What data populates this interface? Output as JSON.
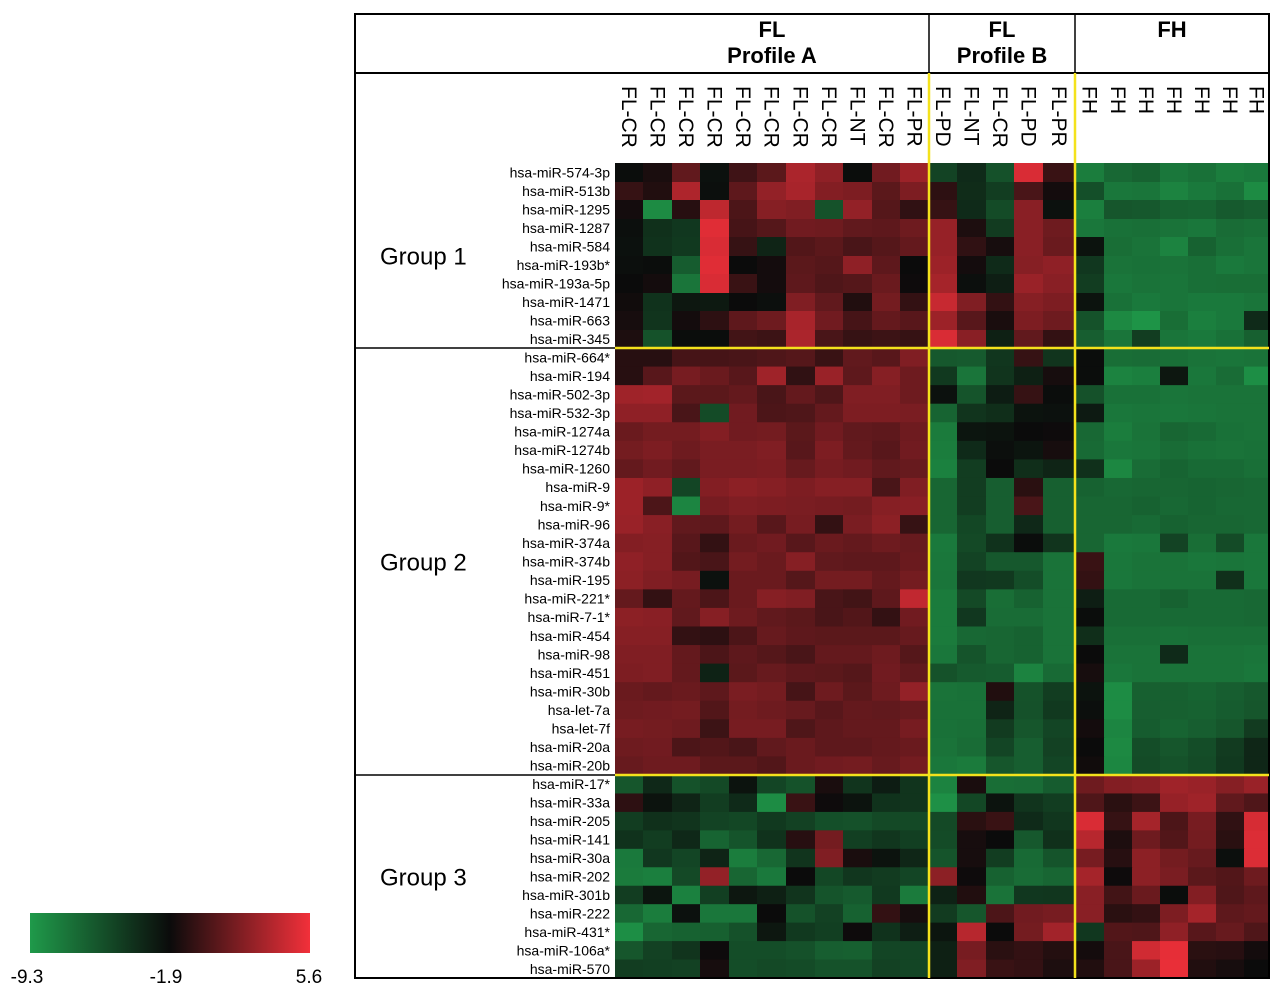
{
  "chart_data": {
    "type": "heatmap",
    "title": "",
    "color_scale": {
      "min": -9.3,
      "mid": -1.9,
      "max": 5.6,
      "tick_labels": [
        "-9.3",
        "-1.9",
        "5.6"
      ],
      "colors": [
        "#1f9a4a",
        "#0b0b0b",
        "#f2303a"
      ]
    },
    "column_groups": [
      {
        "label_lines": [
          "FL",
          "Profile A"
        ],
        "count": 11
      },
      {
        "label_lines": [
          "FL",
          "Profile B"
        ],
        "count": 5
      },
      {
        "label_lines": [
          "FH"
        ],
        "count": 7
      }
    ],
    "columns": [
      "FL-CR",
      "FL-CR",
      "FL-CR",
      "FL-CR",
      "FL-CR",
      "FL-CR",
      "FL-CR",
      "FL-CR",
      "FL-NT",
      "FL-CR",
      "FL-PR",
      "FL-PD",
      "FL-NT",
      "FL-CR",
      "FL-PD",
      "FL-PR",
      "FH",
      "FH",
      "FH",
      "FH",
      "FH",
      "FH",
      "FH"
    ],
    "row_groups": [
      {
        "label": "Group 1",
        "count": 10
      },
      {
        "label": "Group 2",
        "count": 23
      },
      {
        "label": "Group 3",
        "count": 11
      }
    ],
    "rows": [
      "hsa-miR-574-3p",
      "hsa-miR-513b",
      "hsa-miR-1295",
      "hsa-miR-1287",
      "hsa-miR-584",
      "hsa-miR-193b*",
      "hsa-miR-193a-5p",
      "hsa-miR-1471",
      "hsa-miR-663",
      "hsa-miR-345",
      "hsa-miR-664*",
      "hsa-miR-194",
      "hsa-miR-502-3p",
      "hsa-miR-532-3p",
      "hsa-miR-1274a",
      "hsa-miR-1274b",
      "hsa-miR-1260",
      "hsa-miR-9",
      "hsa-miR-9*",
      "hsa-miR-96",
      "hsa-miR-374a",
      "hsa-miR-374b",
      "hsa-miR-195",
      "hsa-miR-221*",
      "hsa-miR-7-1*",
      "hsa-miR-454",
      "hsa-miR-98",
      "hsa-miR-451",
      "hsa-miR-30b",
      "hsa-let-7a",
      "hsa-let-7f",
      "hsa-miR-20a",
      "hsa-miR-20b",
      "hsa-miR-17*",
      "hsa-miR-33a",
      "hsa-miR-205",
      "hsa-miR-141",
      "hsa-miR-30a",
      "hsa-miR-202",
      "hsa-miR-301b",
      "hsa-miR-222",
      "hsa-miR-431*",
      "hsa-miR-106a*",
      "hsa-miR-570"
    ],
    "values": [
      [
        -2.0,
        -1.4,
        0.9,
        -2.2,
        -0.2,
        0.7,
        3.3,
        2.4,
        -2.0,
        1.4,
        2.8,
        -4.8,
        -3.5,
        -5.5,
        4.8,
        -0.4,
        -7.8,
        -6.7,
        -6.4,
        -7.5,
        -7.2,
        -7.8,
        -7.6
      ],
      [
        -0.5,
        -1.2,
        3.4,
        -2.1,
        0.8,
        2.5,
        3.2,
        2.0,
        1.8,
        0.7,
        1.8,
        -0.8,
        -3.6,
        -4.5,
        0.1,
        -1.6,
        -5.4,
        -7.5,
        -7.4,
        -8.1,
        -7.6,
        -7.2,
        -8.5
      ],
      [
        -1.6,
        -8.5,
        -1.0,
        3.9,
        0.2,
        2.1,
        1.9,
        -5.6,
        2.5,
        0.5,
        -0.7,
        -0.5,
        -3.5,
        -5.2,
        2.2,
        -2.2,
        -7.9,
        -5.8,
        -5.9,
        -6.4,
        -6.5,
        -6.0,
        -6.2
      ],
      [
        -2.1,
        -3.8,
        -4.2,
        5.0,
        0.0,
        0.5,
        1.4,
        1.3,
        0.9,
        0.8,
        1.3,
        2.6,
        -1.3,
        -4.4,
        2.2,
        1.3,
        -7.5,
        -7.2,
        -7.1,
        -7.3,
        -7.5,
        -6.9,
        -7.1
      ],
      [
        -2.2,
        -3.9,
        -4.3,
        4.8,
        -0.5,
        -3.2,
        0.4,
        0.7,
        0.1,
        0.5,
        1.0,
        2.6,
        -0.7,
        -1.5,
        2.2,
        1.2,
        -2.3,
        -7.0,
        -7.3,
        -8.1,
        -6.4,
        -7.1,
        -7.4
      ],
      [
        -2.1,
        -2.0,
        -6.1,
        5.0,
        -1.9,
        -1.6,
        0.7,
        0.5,
        2.4,
        0.8,
        -1.9,
        2.8,
        -1.6,
        -3.5,
        2.1,
        2.4,
        -4.2,
        -7.3,
        -7.2,
        -7.3,
        -7.1,
        -7.6,
        -7.4
      ],
      [
        -1.9,
        -1.6,
        -7.4,
        4.8,
        -0.4,
        -1.6,
        0.8,
        0.3,
        0.5,
        1.2,
        -1.8,
        3.1,
        -2.1,
        -2.9,
        2.7,
        2.2,
        -4.5,
        -7.5,
        -7.3,
        -7.4,
        -7.1,
        -7.0,
        -7.0
      ],
      [
        -1.7,
        -3.9,
        -2.5,
        -2.6,
        -1.9,
        -2.1,
        1.9,
        0.9,
        -1.2,
        1.5,
        -0.6,
        4.2,
        1.9,
        -0.6,
        2.1,
        1.8,
        -2.3,
        -7.2,
        -7.6,
        -7.4,
        -7.6,
        -7.6,
        -7.4
      ],
      [
        -1.5,
        -4.0,
        -1.6,
        -0.8,
        0.8,
        1.3,
        3.2,
        1.4,
        0.0,
        1.0,
        0.6,
        2.8,
        0.6,
        -1.4,
        1.8,
        1.3,
        -5.6,
        -8.4,
        -9.0,
        -7.0,
        -7.9,
        -7.6,
        -3.5
      ],
      [
        -1.3,
        -5.6,
        -2.0,
        -2.0,
        -0.1,
        -0.3,
        3.3,
        0.1,
        -0.5,
        -0.3,
        -0.5,
        4.8,
        2.2,
        -3.0,
        0.9,
        -0.6,
        -6.2,
        -7.4,
        -4.5,
        -7.4,
        -7.6,
        -7.2,
        -6.3
      ],
      [
        -1.0,
        -1.0,
        0.0,
        0.0,
        0.1,
        0.3,
        0.5,
        -0.4,
        0.9,
        0.6,
        1.9,
        -5.9,
        -6.0,
        -4.1,
        -0.5,
        -4.0,
        -2.0,
        -7.0,
        -6.9,
        -7.1,
        -7.3,
        -7.4,
        -7.3
      ],
      [
        -1.0,
        0.6,
        1.6,
        1.2,
        0.6,
        2.9,
        -0.7,
        2.7,
        0.8,
        2.1,
        1.3,
        -4.3,
        -7.4,
        -4.0,
        -3.0,
        -1.5,
        -2.0,
        -8.1,
        -7.9,
        -2.5,
        -7.5,
        -6.9,
        -8.7
      ],
      [
        2.9,
        3.0,
        0.7,
        0.7,
        1.0,
        0.1,
        1.0,
        0.3,
        1.9,
        1.9,
        1.3,
        -2.2,
        -5.7,
        -2.8,
        -0.5,
        -2.0,
        -5.5,
        -7.2,
        -7.2,
        -7.4,
        -7.3,
        -7.3,
        -7.3
      ],
      [
        2.4,
        2.4,
        0.1,
        -5.2,
        1.4,
        0.2,
        0.3,
        1.0,
        1.8,
        1.8,
        1.7,
        -6.5,
        -4.0,
        -3.7,
        -2.3,
        -2.2,
        -2.7,
        -7.5,
        -7.4,
        -7.5,
        -7.4,
        -7.3,
        -7.3
      ],
      [
        1.2,
        1.5,
        1.5,
        2.0,
        1.4,
        1.5,
        0.7,
        1.4,
        0.9,
        0.8,
        1.3,
        -7.7,
        -2.4,
        -2.3,
        -1.9,
        -1.8,
        -6.7,
        -7.8,
        -7.3,
        -6.6,
        -6.8,
        -7.2,
        -7.3
      ],
      [
        1.5,
        1.8,
        1.3,
        1.7,
        1.7,
        1.9,
        0.6,
        1.8,
        1.0,
        0.6,
        1.4,
        -7.8,
        -3.5,
        -2.1,
        -2.4,
        -1.5,
        -6.8,
        -7.5,
        -7.4,
        -6.9,
        -7.2,
        -7.3,
        -7.2
      ],
      [
        1.0,
        1.4,
        0.9,
        1.7,
        1.7,
        1.8,
        1.1,
        1.6,
        1.4,
        0.9,
        1.1,
        -8.0,
        -4.5,
        -1.9,
        -3.7,
        -3.2,
        -3.8,
        -8.3,
        -6.9,
        -6.5,
        -6.8,
        -6.8,
        -7.1
      ],
      [
        2.8,
        2.4,
        -4.9,
        2.0,
        2.3,
        2.1,
        1.8,
        2.1,
        2.1,
        0.1,
        1.9,
        -6.6,
        -4.5,
        -6.2,
        -0.9,
        -6.3,
        -6.4,
        -6.7,
        -6.6,
        -6.6,
        -6.5,
        -6.6,
        -6.7
      ],
      [
        2.8,
        0.2,
        -8.2,
        1.6,
        1.9,
        1.8,
        1.7,
        1.6,
        1.5,
        2.1,
        2.2,
        -6.6,
        -4.5,
        -6.2,
        0.1,
        -6.3,
        -6.6,
        -6.6,
        -6.4,
        -6.7,
        -6.5,
        -6.7,
        -6.7
      ],
      [
        2.7,
        2.2,
        0.9,
        0.8,
        1.5,
        0.6,
        1.6,
        -0.6,
        1.7,
        2.3,
        -0.5,
        -6.6,
        -5.0,
        -6.2,
        -3.4,
        -6.3,
        -6.6,
        -6.6,
        -6.8,
        -6.4,
        -6.6,
        -6.6,
        -6.7
      ],
      [
        2.0,
        2.1,
        0.6,
        -0.6,
        1.2,
        1.4,
        0.6,
        1.2,
        1.0,
        1.3,
        1.1,
        -7.6,
        -5.1,
        -3.9,
        -2.0,
        -4.0,
        -6.6,
        -7.6,
        -7.5,
        -4.8,
        -7.0,
        -5.2,
        -7.5
      ],
      [
        2.4,
        2.1,
        0.4,
        0.1,
        1.5,
        1.2,
        2.1,
        0.9,
        0.8,
        0.8,
        1.2,
        -7.5,
        -4.8,
        -5.9,
        -5.9,
        -7.3,
        -0.4,
        -7.5,
        -7.3,
        -7.3,
        -7.5,
        -7.4,
        -7.5
      ],
      [
        2.3,
        1.9,
        1.6,
        -2.2,
        1.2,
        1.2,
        0.5,
        1.5,
        1.5,
        1.0,
        1.5,
        -7.4,
        -4.2,
        -4.3,
        -5.3,
        -7.3,
        -0.6,
        -7.5,
        -7.3,
        -7.3,
        -7.3,
        -3.8,
        -7.5
      ],
      [
        1.0,
        -0.6,
        1.0,
        0.2,
        1.2,
        2.1,
        1.9,
        0.1,
        -0.1,
        0.8,
        4.0,
        -7.7,
        -5.1,
        -7.0,
        -6.4,
        -7.3,
        -2.9,
        -6.8,
        -6.8,
        -6.4,
        -6.8,
        -6.8,
        -6.7
      ],
      [
        2.3,
        2.2,
        0.9,
        2.1,
        1.3,
        0.9,
        0.7,
        0.1,
        0.4,
        -0.6,
        1.4,
        -7.7,
        -4.2,
        -6.9,
        -6.9,
        -7.3,
        -2.0,
        -6.8,
        -6.8,
        -6.8,
        -6.8,
        -6.8,
        -6.7
      ],
      [
        2.1,
        2.1,
        -0.6,
        -0.8,
        0.2,
        1.1,
        0.8,
        0.7,
        0.7,
        0.7,
        1.1,
        -7.7,
        -6.7,
        -6.6,
        -6.4,
        -7.3,
        -3.7,
        -7.1,
        -7.1,
        -7.2,
        -7.1,
        -7.1,
        -7.1
      ],
      [
        1.9,
        1.9,
        1.0,
        0.2,
        0.8,
        0.5,
        0.1,
        1.0,
        1.0,
        1.3,
        0.5,
        -7.5,
        -5.7,
        -6.6,
        -6.4,
        -7.3,
        -1.9,
        -7.3,
        -7.3,
        -3.5,
        -7.3,
        -7.3,
        -7.4
      ],
      [
        1.8,
        1.9,
        1.0,
        -3.1,
        0.7,
        1.1,
        0.8,
        0.7,
        0.5,
        1.4,
        0.9,
        -5.6,
        -6.0,
        -6.1,
        -8.1,
        -6.8,
        -1.5,
        -7.5,
        -7.3,
        -7.3,
        -7.3,
        -7.3,
        -7.5
      ],
      [
        1.2,
        1.0,
        1.2,
        0.8,
        1.7,
        1.5,
        0.0,
        1.3,
        0.7,
        1.3,
        2.5,
        -7.3,
        -7.2,
        -1.2,
        -5.6,
        -4.5,
        -2.3,
        -8.6,
        -6.3,
        -6.3,
        -6.5,
        -6.2,
        -5.9
      ],
      [
        1.3,
        1.4,
        1.5,
        0.4,
        1.5,
        1.3,
        1.1,
        0.6,
        1.0,
        0.9,
        1.1,
        -7.2,
        -7.2,
        -3.2,
        -5.5,
        -4.3,
        -2.1,
        -8.6,
        -6.2,
        -6.3,
        -6.4,
        -6.1,
        -5.8
      ],
      [
        1.6,
        1.5,
        1.3,
        -0.3,
        1.6,
        1.6,
        0.3,
        0.8,
        1.0,
        1.0,
        1.6,
        -7.2,
        -7.1,
        -4.4,
        -5.8,
        -4.9,
        -1.6,
        -8.2,
        -6.1,
        -6.5,
        -6.2,
        -5.8,
        -4.4
      ],
      [
        1.3,
        1.4,
        0.2,
        0.4,
        0.1,
        0.9,
        1.2,
        0.8,
        0.8,
        1.0,
        1.2,
        -7.3,
        -6.9,
        -4.9,
        -6.2,
        -4.7,
        -1.9,
        -8.4,
        -5.3,
        -5.8,
        -5.3,
        -4.4,
        -3.3
      ],
      [
        1.1,
        1.3,
        1.3,
        0.7,
        0.7,
        0.4,
        1.2,
        1.4,
        1.5,
        1.1,
        1.5,
        -7.5,
        -7.7,
        -5.8,
        -6.2,
        -4.9,
        -1.7,
        -8.3,
        -5.2,
        -5.6,
        -5.2,
        -4.3,
        -3.3
      ],
      [
        -5.8,
        -3.4,
        -5.6,
        -5.1,
        -2.3,
        -4.9,
        -5.6,
        -1.4,
        -4.0,
        -2.8,
        -4.0,
        -8.1,
        -1.4,
        -7.0,
        -6.9,
        -6.1,
        1.3,
        2.0,
        2.2,
        2.9,
        2.7,
        2.1,
        2.7
      ],
      [
        -0.8,
        -2.3,
        -3.2,
        -4.5,
        -3.5,
        -8.6,
        -0.4,
        -1.8,
        -2.3,
        -3.9,
        -4.0,
        -8.8,
        -5.0,
        -2.3,
        -4.0,
        -4.5,
        0.3,
        -0.9,
        -0.3,
        2.6,
        2.9,
        0.9,
        0.3
      ],
      [
        -4.5,
        -3.8,
        -4.0,
        -4.8,
        -5.0,
        -4.3,
        -4.7,
        -5.4,
        -5.5,
        -5.1,
        -5.1,
        -5.1,
        -0.9,
        -0.4,
        -3.5,
        -4.1,
        4.8,
        -0.5,
        3.1,
        0.2,
        1.6,
        -0.7,
        4.7
      ],
      [
        -3.9,
        -4.5,
        -3.4,
        -6.5,
        -5.7,
        -3.9,
        -1.0,
        1.5,
        -4.6,
        -4.1,
        -4.6,
        -5.2,
        -1.5,
        -1.9,
        -5.9,
        -3.8,
        3.7,
        -1.3,
        1.3,
        0.4,
        1.5,
        -0.9,
        4.9
      ],
      [
        -7.6,
        -4.2,
        -4.9,
        -3.2,
        -7.8,
        -6.7,
        -4.0,
        1.9,
        -1.4,
        -2.3,
        -3.3,
        -5.7,
        -1.5,
        -4.5,
        -6.8,
        -5.7,
        1.6,
        -1.0,
        2.3,
        1.5,
        1.1,
        -2.1,
        4.9
      ],
      [
        -7.7,
        -7.9,
        -5.1,
        2.5,
        -6.6,
        -7.6,
        -1.9,
        -5.0,
        -4.1,
        -4.4,
        -4.9,
        2.3,
        -1.8,
        -6.4,
        -6.9,
        -6.6,
        3.1,
        -1.8,
        2.3,
        1.7,
        0.7,
        0.4,
        1.3
      ],
      [
        -4.5,
        -2.4,
        -8.0,
        -4.6,
        -2.5,
        -3.0,
        -4.0,
        -5.7,
        -6.0,
        -4.3,
        -7.7,
        -3.1,
        -1.2,
        -7.3,
        -4.2,
        -4.1,
        2.2,
        -0.1,
        1.2,
        -2.0,
        2.0,
        0.3,
        0.8
      ],
      [
        -6.7,
        -7.8,
        -2.2,
        -7.5,
        -7.5,
        -1.9,
        -5.6,
        -4.7,
        -6.4,
        -0.6,
        -1.5,
        -4.4,
        -5.8,
        0.2,
        1.4,
        1.6,
        2.2,
        -0.9,
        -0.6,
        1.8,
        3.1,
        0.8,
        1.0
      ],
      [
        -8.7,
        -6.6,
        -6.4,
        -6.3,
        -5.5,
        -2.5,
        -4.3,
        -4.6,
        -1.8,
        -3.9,
        -2.9,
        -2.4,
        3.7,
        -1.9,
        1.5,
        3.0,
        -4.2,
        0.4,
        0.3,
        2.4,
        0.6,
        1.1,
        0.3
      ],
      [
        -5.8,
        -4.7,
        -4.0,
        -1.8,
        -5.3,
        -5.3,
        -5.5,
        -6.2,
        -6.3,
        -4.9,
        -4.9,
        -3.0,
        1.6,
        -0.9,
        -0.6,
        -1.1,
        -1.6,
        0.1,
        4.5,
        5.2,
        -0.9,
        -1.0,
        -1.6
      ],
      [
        -4.5,
        -4.6,
        -4.7,
        -1.5,
        -5.3,
        -5.1,
        -5.2,
        -5.6,
        -5.6,
        -4.7,
        -4.9,
        -3.0,
        1.9,
        -0.4,
        -0.6,
        -1.3,
        -1.2,
        0.1,
        2.8,
        5.3,
        -1.2,
        -1.5,
        -1.9
      ]
    ]
  }
}
